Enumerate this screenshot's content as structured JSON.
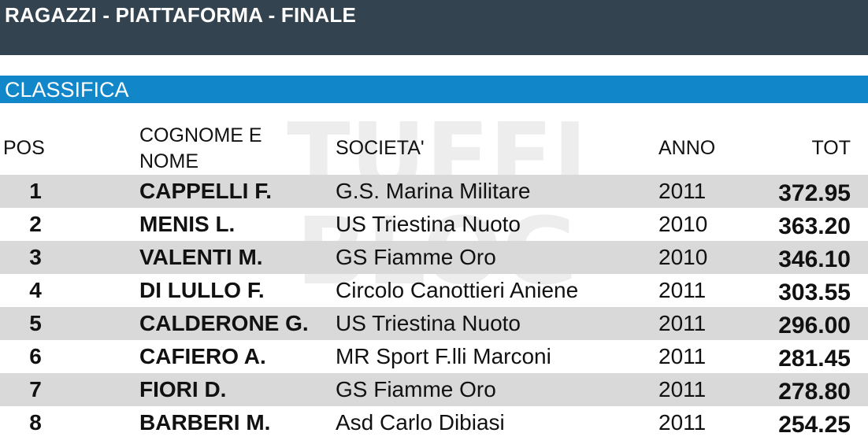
{
  "header": {
    "title": "RAGAZZI - PIATTAFORMA - FINALE"
  },
  "section": {
    "title": "CLASSIFICA"
  },
  "table": {
    "columns": {
      "pos": "POS",
      "name": "COGNOME E NOME",
      "societa": "SOCIETA'",
      "anno": "ANNO",
      "tot": "TOT"
    },
    "rows": [
      {
        "pos": "1",
        "name": "CAPPELLI F.",
        "societa": "G.S. Marina Militare",
        "anno": "2011",
        "tot": "372.95"
      },
      {
        "pos": "2",
        "name": "MENIS L.",
        "societa": "US Triestina Nuoto",
        "anno": "2010",
        "tot": "363.20"
      },
      {
        "pos": "3",
        "name": "VALENTI M.",
        "societa": "GS Fiamme Oro",
        "anno": "2010",
        "tot": "346.10"
      },
      {
        "pos": "4",
        "name": "DI LULLO F.",
        "societa": "Circolo Canottieri Aniene",
        "anno": "2011",
        "tot": "303.55"
      },
      {
        "pos": "5",
        "name": "CALDERONE G.",
        "societa": "US Triestina Nuoto",
        "anno": "2011",
        "tot": "296.00"
      },
      {
        "pos": "6",
        "name": "CAFIERO A.",
        "societa": "MR Sport F.lli Marconi",
        "anno": "2011",
        "tot": "281.45"
      },
      {
        "pos": "7",
        "name": "FIORI D.",
        "societa": "GS Fiamme Oro",
        "anno": "2011",
        "tot": "278.80"
      },
      {
        "pos": "8",
        "name": "BARBERI M.",
        "societa": "Asd Carlo Dibiasi",
        "anno": "2011",
        "tot": "254.25"
      }
    ]
  },
  "watermark": {
    "line1": "TUFFI",
    "line2": "BLOG"
  },
  "colors": {
    "title_bar": "#334450",
    "section_bar": "#1187c9",
    "row_shade": "#d9d9d9"
  }
}
